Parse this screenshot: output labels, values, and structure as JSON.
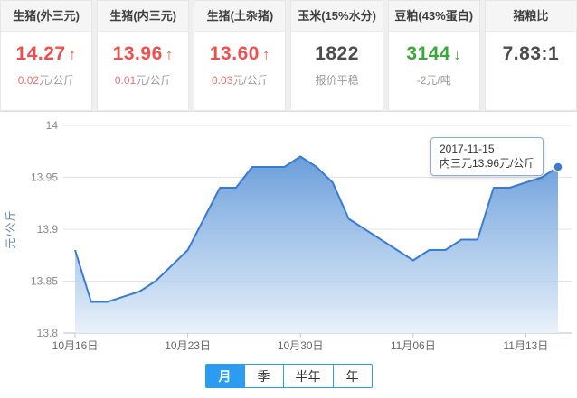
{
  "colors": {
    "up_red": "#f0504d",
    "down_green": "#3aa83a",
    "neutral_dark": "#4d4d4d",
    "sub_red": "#ee6f6d",
    "sub_gray": "#999999",
    "accent_blue": "#2b9df0",
    "chart_line": "#3a7cd0",
    "axis_name_blue": "#5b7fa6"
  },
  "cards": [
    {
      "title": "生猪(外三元)",
      "value": "14.27",
      "trend": "up",
      "sub_value": "0.02",
      "sub_unit": "元/公斤",
      "sub_value_color": "red"
    },
    {
      "title": "生猪(内三元)",
      "value": "13.96",
      "trend": "up",
      "sub_value": "0.01",
      "sub_unit": "元/公斤",
      "sub_value_color": "red"
    },
    {
      "title": "生猪(土杂猪)",
      "value": "13.60",
      "trend": "up",
      "sub_value": "0.03",
      "sub_unit": "元/公斤",
      "sub_value_color": "red"
    },
    {
      "title": "玉米(15%水分)",
      "value": "1822",
      "trend": "none",
      "sub_value": "",
      "sub_unit": "报价平稳",
      "sub_value_color": "gray"
    },
    {
      "title": "豆粕(43%蛋白)",
      "value": "3144",
      "trend": "down",
      "sub_value": "-2",
      "sub_unit": "元/吨",
      "sub_value_color": "gray"
    },
    {
      "title": "猪粮比",
      "value": "7.83:1",
      "trend": "none",
      "sub_value": "",
      "sub_unit": "",
      "sub_value_color": "gray"
    }
  ],
  "chart_data": {
    "type": "area",
    "series_name": "内三元",
    "ylabel": "元/公斤",
    "ylim": [
      13.8,
      14
    ],
    "yticks": [
      13.8,
      13.85,
      13.9,
      13.95,
      14
    ],
    "grid": true,
    "xtick_labels": [
      "10月16日",
      "10月23日",
      "10月30日",
      "11月06日",
      "11月13日"
    ],
    "xtick_indices": [
      0,
      7,
      14,
      21,
      28
    ],
    "dates": [
      "2017-10-16",
      "2017-10-17",
      "2017-10-18",
      "2017-10-19",
      "2017-10-20",
      "2017-10-21",
      "2017-10-22",
      "2017-10-23",
      "2017-10-24",
      "2017-10-25",
      "2017-10-26",
      "2017-10-27",
      "2017-10-28",
      "2017-10-29",
      "2017-10-30",
      "2017-10-31",
      "2017-11-01",
      "2017-11-02",
      "2017-11-03",
      "2017-11-04",
      "2017-11-05",
      "2017-11-06",
      "2017-11-07",
      "2017-11-08",
      "2017-11-09",
      "2017-11-10",
      "2017-11-11",
      "2017-11-12",
      "2017-11-13",
      "2017-11-14",
      "2017-11-15"
    ],
    "values": [
      13.88,
      13.83,
      13.83,
      13.835,
      13.84,
      13.85,
      13.865,
      13.88,
      13.91,
      13.94,
      13.94,
      13.96,
      13.96,
      13.96,
      13.97,
      13.96,
      13.945,
      13.91,
      13.9,
      13.89,
      13.88,
      13.87,
      13.88,
      13.88,
      13.89,
      13.89,
      13.94,
      13.94,
      13.945,
      13.95,
      13.96
    ]
  },
  "tooltip": {
    "date": "2017-11-15",
    "text": "内三元13.96元/公斤"
  },
  "tabs": [
    {
      "label": "月",
      "active": true
    },
    {
      "label": "季",
      "active": false
    },
    {
      "label": "半年",
      "active": false
    },
    {
      "label": "年",
      "active": false
    }
  ]
}
